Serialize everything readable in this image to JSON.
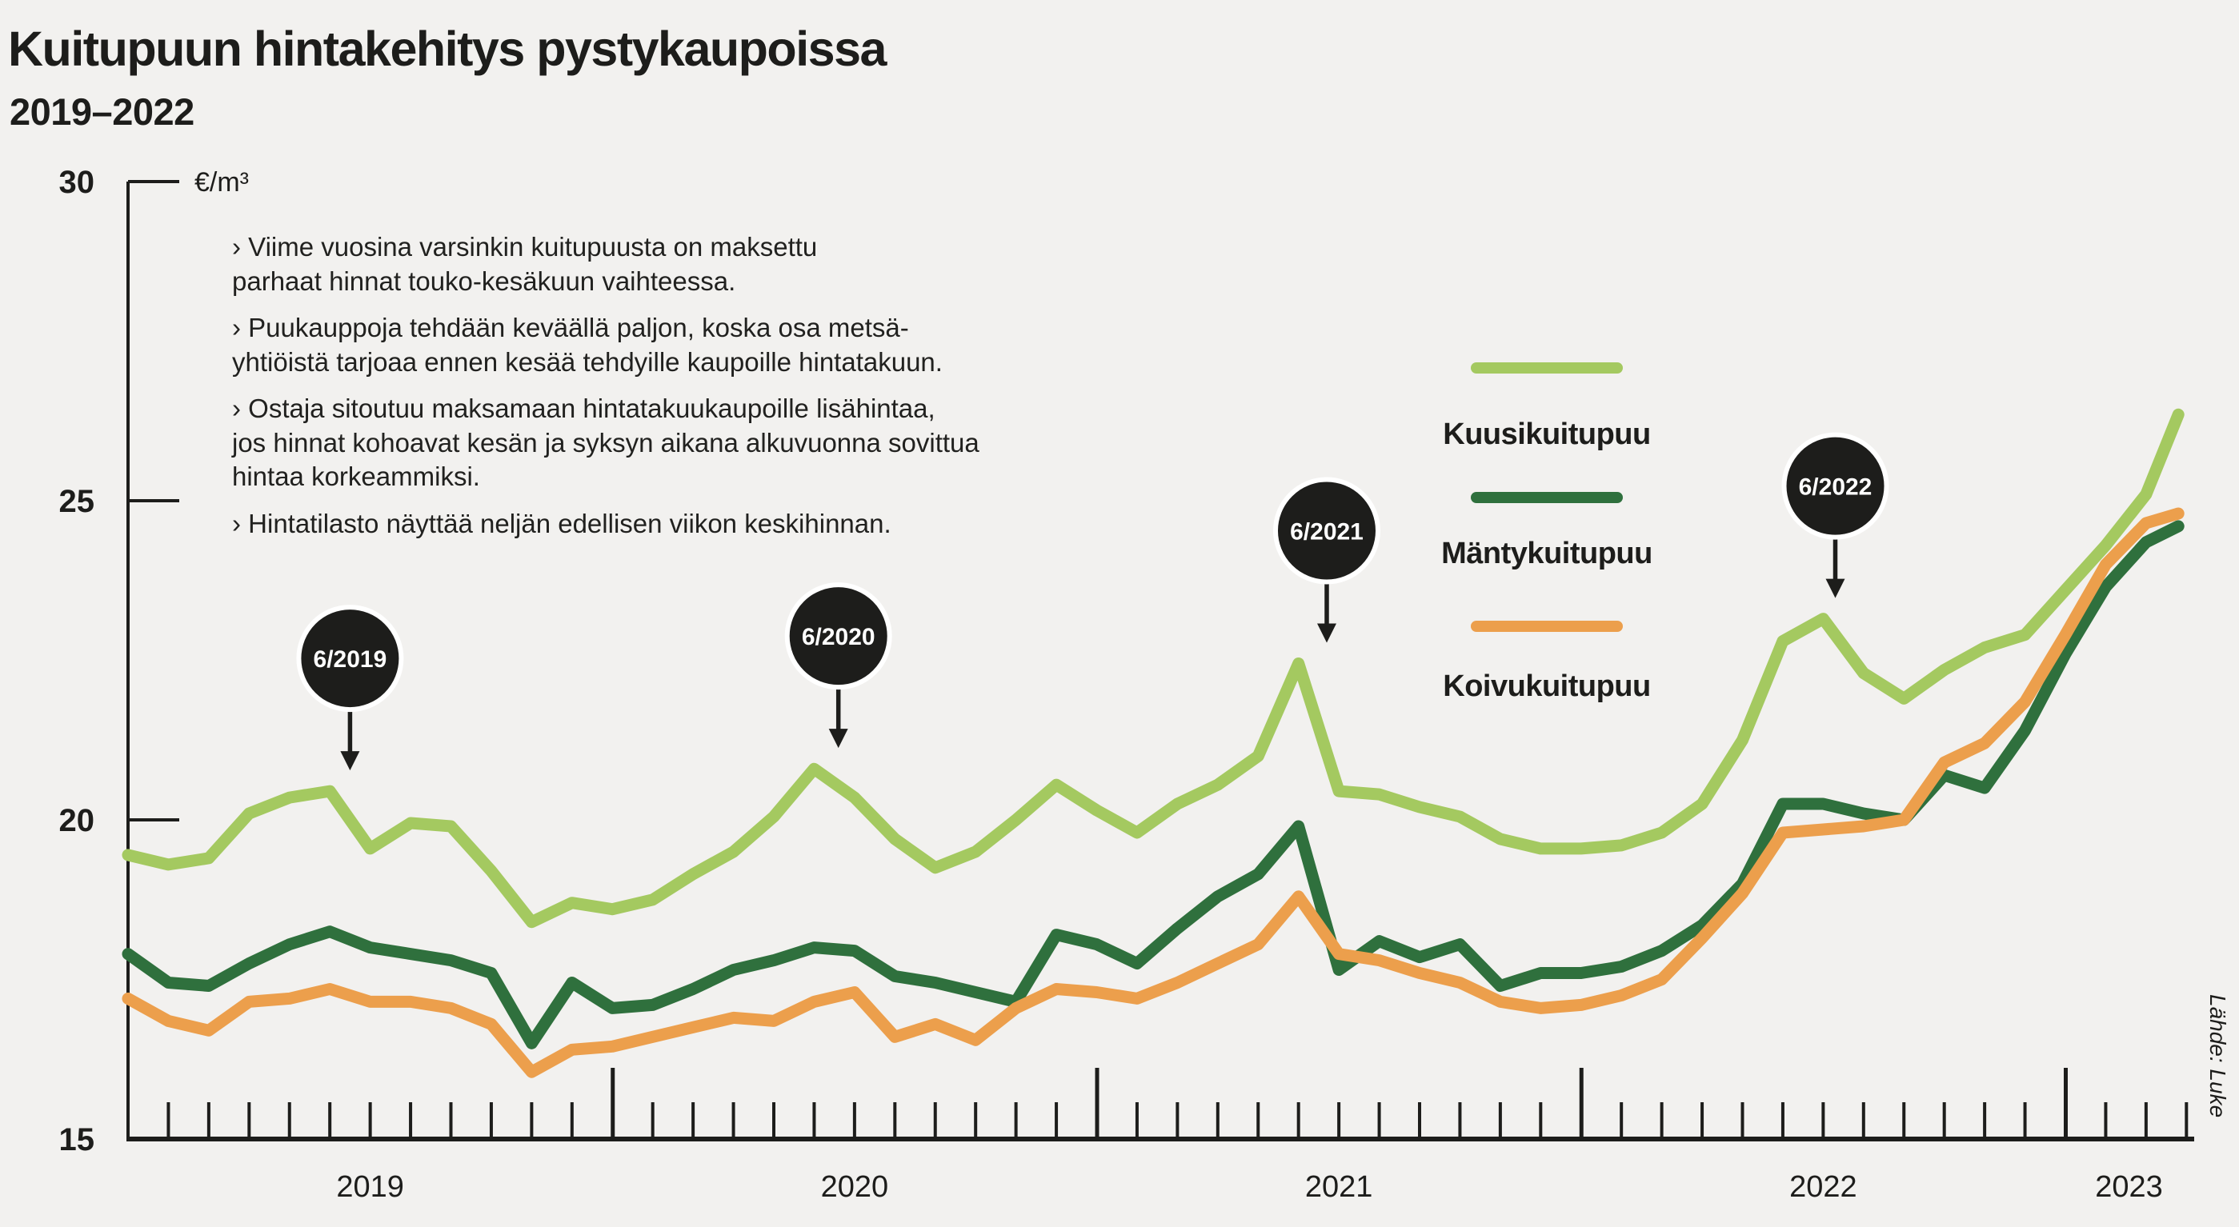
{
  "page": {
    "background": "#f2f1ef",
    "ink": "#1d1d1b",
    "bubble_fill": "#1d1d1b",
    "bubble_text_color": "#ffffff"
  },
  "header": {
    "title": "Kuitupuun hintakehitys pystykaupoissa",
    "subtitle": "2019–2022"
  },
  "notes": [
    [
      "› Viime vuosina varsinkin kuitupuusta on maksettu",
      "parhaat hinnat touko-kesäkuun vaihteessa."
    ],
    [
      "› Puukauppoja tehdään keväällä paljon, koska osa metsä-",
      "yhtiöistä tarjoaa ennen kesää tehdyille kaupoille hintatakuun."
    ],
    [
      "› Ostaja sitoutuu maksamaan hintatakuukaupoille lisähintaa,",
      "jos hinnat kohoavat kesän ja syksyn aikana alkuvuonna sovittua",
      "hintaa korkeammiksi."
    ],
    [
      "› Hintatilasto näyttää neljän edellisen viikon keskihinnan."
    ]
  ],
  "source": "Lähde: Luke",
  "chart_data": {
    "type": "line",
    "title": "Kuitupuun hintakehitys pystykaupoissa 2019–2022",
    "unit_label": "€/m³",
    "x_start": "2019-01",
    "x_step_months": 1,
    "x_axis": {
      "year_labels": [
        "2019",
        "2020",
        "2021",
        "2022",
        "2023"
      ]
    },
    "y_axis": {
      "min": 15,
      "max": 30,
      "ticks": [
        30,
        25,
        20,
        15
      ],
      "tick_labels": [
        "30",
        "25",
        "20",
        "15"
      ],
      "grid": false
    },
    "legend_position": "right-center-column",
    "series": [
      {
        "name": "Kuusikuitupuu",
        "color": "#a4c960",
        "values": [
          19.45,
          19.3,
          19.4,
          20.1,
          20.35,
          20.45,
          19.55,
          19.95,
          19.9,
          19.2,
          18.4,
          18.7,
          18.6,
          18.75,
          19.15,
          19.5,
          20.05,
          20.8,
          20.35,
          19.7,
          19.25,
          19.5,
          20.0,
          20.55,
          20.15,
          19.8,
          20.25,
          20.55,
          21.0,
          22.45,
          20.45,
          20.4,
          20.2,
          20.05,
          19.7,
          19.55,
          19.55,
          19.6,
          19.8,
          20.25,
          21.25,
          22.8,
          23.15,
          22.3,
          21.9,
          22.35,
          22.7,
          22.9,
          23.6,
          24.3,
          25.1,
          26.35
        ]
      },
      {
        "name": "Mäntykuitupuu",
        "color": "#2f703d",
        "values": [
          17.9,
          17.45,
          17.4,
          17.75,
          18.05,
          18.25,
          18.0,
          17.9,
          17.8,
          17.6,
          16.5,
          17.45,
          17.05,
          17.1,
          17.35,
          17.65,
          17.8,
          18.0,
          17.95,
          17.55,
          17.45,
          17.3,
          17.15,
          18.2,
          18.05,
          17.75,
          18.3,
          18.8,
          19.15,
          19.9,
          17.65,
          18.1,
          17.85,
          18.05,
          17.4,
          17.6,
          17.6,
          17.7,
          17.95,
          18.35,
          19.0,
          20.25,
          20.25,
          20.1,
          20.0,
          20.7,
          20.5,
          21.4,
          22.6,
          23.65,
          24.35,
          24.6
        ]
      },
      {
        "name": "Koivukuitupuu",
        "color": "#ec9f4c",
        "values": [
          17.2,
          16.85,
          16.7,
          17.15,
          17.2,
          17.35,
          17.15,
          17.15,
          17.05,
          16.8,
          16.05,
          16.4,
          16.45,
          16.6,
          16.75,
          16.9,
          16.85,
          17.15,
          17.3,
          16.6,
          16.8,
          16.55,
          17.05,
          17.35,
          17.3,
          17.2,
          17.45,
          17.75,
          18.05,
          18.8,
          17.9,
          17.8,
          17.6,
          17.45,
          17.15,
          17.05,
          17.1,
          17.25,
          17.5,
          18.15,
          18.85,
          19.8,
          19.85,
          19.9,
          20.0,
          20.9,
          21.2,
          21.85,
          22.9,
          24.0,
          24.65,
          24.8
        ]
      }
    ],
    "annotations": [
      {
        "label": "6/2019",
        "month_index": 5.5,
        "peak_value": 20.45
      },
      {
        "label": "6/2020",
        "month_index": 17.6,
        "peak_value": 20.8
      },
      {
        "label": "6/2021",
        "month_index": 29.7,
        "peak_value": 22.45
      },
      {
        "label": "6/2022",
        "month_index": 42.3,
        "peak_value": 23.15
      }
    ]
  }
}
